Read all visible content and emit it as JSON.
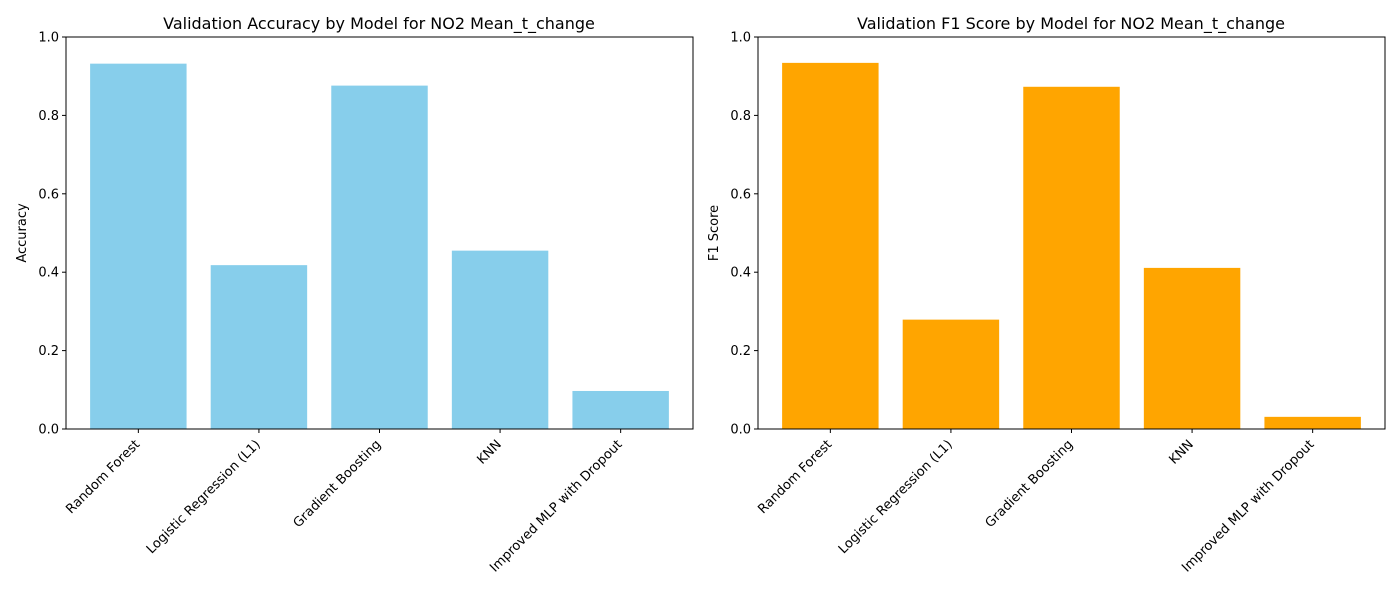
{
  "chart_data": [
    {
      "type": "bar",
      "title": "Validation Accuracy by Model for NO2 Mean_t_change",
      "xlabel": "",
      "ylabel": "Accuracy",
      "ylim": [
        0,
        1
      ],
      "yticks": [
        "0.0",
        "0.2",
        "0.4",
        "0.6",
        "0.8",
        "1.0"
      ],
      "categories": [
        "Random Forest",
        "Logistic Regression (L1)",
        "Gradient Boosting",
        "KNN",
        "Improved MLP with Dropout"
      ],
      "values": [
        0.932,
        0.418,
        0.876,
        0.455,
        0.097
      ],
      "color": "#87CEEB",
      "grid": false
    },
    {
      "type": "bar",
      "title": "Validation F1 Score by Model for NO2 Mean_t_change",
      "xlabel": "",
      "ylabel": "F1 Score",
      "ylim": [
        0,
        1
      ],
      "yticks": [
        "0.0",
        "0.2",
        "0.4",
        "0.6",
        "0.8",
        "1.0"
      ],
      "categories": [
        "Random Forest",
        "Logistic Regression (L1)",
        "Gradient Boosting",
        "KNN",
        "Improved MLP with Dropout"
      ],
      "values": [
        0.934,
        0.279,
        0.873,
        0.411,
        0.031
      ],
      "color": "#FFA500",
      "grid": false
    }
  ]
}
